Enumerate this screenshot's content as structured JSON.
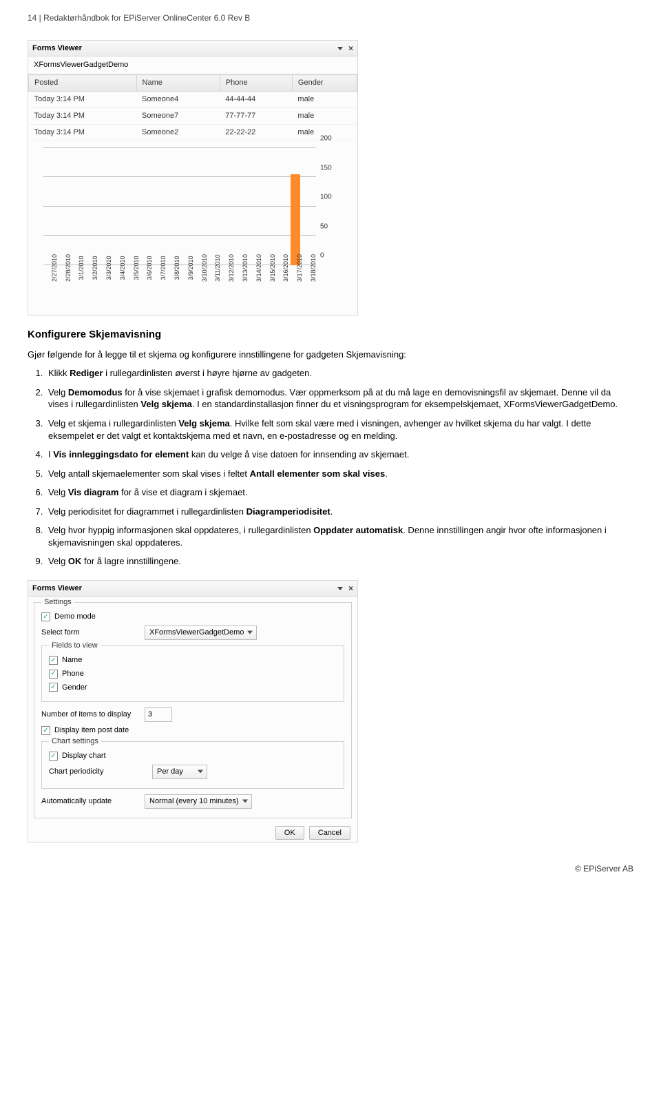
{
  "header": "14 | Redaktørhåndbok for EPiServer OnlineCenter 6.0 Rev B",
  "viewer1": {
    "title": "Forms Viewer",
    "subtitle": "XFormsViewerGadgetDemo",
    "columns": [
      "Posted",
      "Name",
      "Phone",
      "Gender"
    ],
    "rows": [
      [
        "Today 3:14 PM",
        "Someone4",
        "44-44-44",
        "male"
      ],
      [
        "Today 3:14 PM",
        "Someone7",
        "77-77-77",
        "male"
      ],
      [
        "Today 3:14 PM",
        "Someone2",
        "22-22-22",
        "male"
      ]
    ],
    "chart": {
      "ylim": [
        0,
        200
      ],
      "ytick_step": 50,
      "grid_color": "#bfbfbf",
      "bar_color": "#ff8a2a",
      "series": [
        {
          "x": "2/27/2010",
          "y": 0
        },
        {
          "x": "2/28/2010",
          "y": 0
        },
        {
          "x": "3/1/2010",
          "y": 0
        },
        {
          "x": "3/2/2010",
          "y": 0
        },
        {
          "x": "3/3/2010",
          "y": 0
        },
        {
          "x": "3/4/2010",
          "y": 0
        },
        {
          "x": "3/5/2010",
          "y": 0
        },
        {
          "x": "3/6/2010",
          "y": 0
        },
        {
          "x": "3/7/2010",
          "y": 0
        },
        {
          "x": "3/8/2010",
          "y": 0
        },
        {
          "x": "3/9/2010",
          "y": 0
        },
        {
          "x": "3/10/2010",
          "y": 0
        },
        {
          "x": "3/11/2010",
          "y": 0
        },
        {
          "x": "3/12/2010",
          "y": 0
        },
        {
          "x": "3/13/2010",
          "y": 0
        },
        {
          "x": "3/14/2010",
          "y": 0
        },
        {
          "x": "3/15/2010",
          "y": 0
        },
        {
          "x": "3/16/2010",
          "y": 0
        },
        {
          "x": "3/17/2010",
          "y": 155
        },
        {
          "x": "3/18/2010",
          "y": 0
        }
      ]
    }
  },
  "section_title": "Konfigurere Skjemavisning",
  "intro": "Gjør følgende for å legge til et skjema og konfigurere innstillingene for gadgeten Skjemavisning:",
  "steps": [
    [
      [
        "Klikk "
      ],
      [
        "b",
        "Rediger"
      ],
      [
        " i rullegardinlisten øverst i høyre hjørne av gadgeten."
      ]
    ],
    [
      [
        "Velg "
      ],
      [
        "b",
        "Demomodus"
      ],
      [
        " for å vise skjemaet i grafisk demomodus. Vær oppmerksom på at du må lage en demovisningsfil av skjemaet. Denne vil da vises i rullegardinlisten "
      ],
      [
        "b",
        "Velg skjema"
      ],
      [
        ". I en standardinstallasjon finner du et visningsprogram for eksempelskjemaet, XFormsViewerGadgetDemo."
      ]
    ],
    [
      [
        "Velg et skjema i rullegardinlisten "
      ],
      [
        "b",
        "Velg skjema"
      ],
      [
        ". Hvilke felt som skal være med i visningen, avhenger av hvilket skjema du har valgt. I dette eksempelet er det valgt et kontaktskjema med et navn, en e-postadresse og en melding."
      ]
    ],
    [
      [
        "I "
      ],
      [
        "b",
        "Vis innleggingsdato for element"
      ],
      [
        " kan du velge å vise datoen for innsending av skjemaet."
      ]
    ],
    [
      [
        "Velg antall skjemaelementer som skal vises i feltet "
      ],
      [
        "b",
        "Antall elementer som skal vises"
      ],
      [
        "."
      ]
    ],
    [
      [
        "Velg "
      ],
      [
        "b",
        "Vis diagram"
      ],
      [
        " for å vise et diagram i skjemaet."
      ]
    ],
    [
      [
        "Velg periodisitet for diagrammet i rullegardinlisten "
      ],
      [
        "b",
        "Diagramperiodisitet"
      ],
      [
        "."
      ]
    ],
    [
      [
        "Velg hvor hyppig informasjonen skal oppdateres, i rullegardinlisten "
      ],
      [
        "b",
        "Oppdater automatisk"
      ],
      [
        ". Denne innstillingen angir hvor ofte informasjonen i skjemavisningen skal oppdateres."
      ]
    ],
    [
      [
        "Velg "
      ],
      [
        "b",
        "OK"
      ],
      [
        " for å lagre innstillingene."
      ]
    ]
  ],
  "settings": {
    "title": "Forms Viewer",
    "legend_settings": "Settings",
    "demo_mode": "Demo mode",
    "select_form_label": "Select form",
    "select_form_value": "XFormsViewerGadgetDemo",
    "fields_legend": "Fields to view",
    "fields": [
      "Name",
      "Phone",
      "Gender"
    ],
    "num_items_label": "Number of items to display",
    "num_items_value": "3",
    "display_post_date": "Display item post date",
    "chart_legend": "Chart settings",
    "display_chart": "Display chart",
    "chart_periodicity_label": "Chart periodicity",
    "chart_periodicity_value": "Per day",
    "auto_update_label": "Automatically update",
    "auto_update_value": "Normal (every 10 minutes)",
    "ok": "OK",
    "cancel": "Cancel"
  },
  "footer": "© EPiServer AB"
}
